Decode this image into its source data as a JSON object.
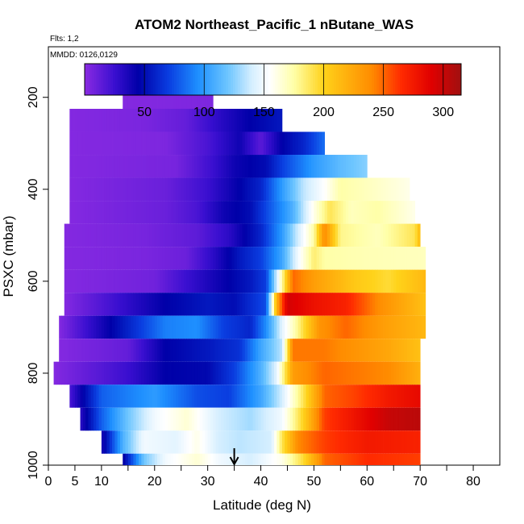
{
  "chart_data": {
    "type": "heatmap",
    "title": "ATOM2 Northeast_Pacific_1 nButane_WAS",
    "annotations": {
      "flights": "Flts: 1,2",
      "dates": "MMDD: 0126,0129"
    },
    "xlabel": "Latitude (deg N)",
    "ylabel": "PSXC (mbar)",
    "xlim": [
      0,
      85
    ],
    "ylim": [
      1000,
      90
    ],
    "y_reversed": true,
    "x_ticks": [
      0,
      5,
      10,
      20,
      30,
      40,
      50,
      60,
      70,
      80
    ],
    "y_ticks": [
      200,
      400,
      600,
      800,
      1000
    ],
    "grid": false,
    "colorbar": {
      "range": [
        0,
        315
      ],
      "tick_values": [
        50,
        100,
        150,
        200,
        250,
        300
      ],
      "stops": [
        {
          "v": 0,
          "color": "#8a2be2"
        },
        {
          "v": 25,
          "color": "#3a0fd0"
        },
        {
          "v": 45,
          "color": "#0000a8"
        },
        {
          "v": 70,
          "color": "#0a3de0"
        },
        {
          "v": 95,
          "color": "#1e90ff"
        },
        {
          "v": 120,
          "color": "#6ec6ff"
        },
        {
          "v": 140,
          "color": "#d6efff"
        },
        {
          "v": 155,
          "color": "#ffffff"
        },
        {
          "v": 175,
          "color": "#ffffa8"
        },
        {
          "v": 200,
          "color": "#ffd21a"
        },
        {
          "v": 240,
          "color": "#ff8c00"
        },
        {
          "v": 265,
          "color": "#ff2a00"
        },
        {
          "v": 290,
          "color": "#e00000"
        },
        {
          "v": 315,
          "color": "#a01010"
        }
      ]
    },
    "marker_latitude": 35,
    "rows": [
      {
        "p": 200,
        "lat_min": 14,
        "lat_max": 31,
        "seg": [
          [
            14,
            2
          ],
          [
            31,
            4
          ]
        ]
      },
      {
        "p": 250,
        "lat_min": 4,
        "lat_max": 44,
        "seg": [
          [
            4,
            2
          ],
          [
            18,
            5
          ],
          [
            26,
            12
          ],
          [
            32,
            30
          ],
          [
            38,
            45
          ],
          [
            44,
            55
          ]
        ]
      },
      {
        "p": 300,
        "lat_min": 4,
        "lat_max": 52,
        "seg": [
          [
            4,
            2
          ],
          [
            22,
            4
          ],
          [
            30,
            20
          ],
          [
            36,
            40
          ],
          [
            40,
            15
          ],
          [
            44,
            45
          ],
          [
            48,
            60
          ],
          [
            52,
            85
          ]
        ]
      },
      {
        "p": 350,
        "lat_min": 4,
        "lat_max": 60,
        "seg": [
          [
            4,
            2
          ],
          [
            24,
            6
          ],
          [
            31,
            25
          ],
          [
            35,
            40
          ],
          [
            41,
            50
          ],
          [
            44,
            70
          ],
          [
            50,
            100
          ],
          [
            55,
            115
          ],
          [
            60,
            125
          ]
        ]
      },
      {
        "p": 400,
        "lat_min": 4,
        "lat_max": 68,
        "seg": [
          [
            4,
            2
          ],
          [
            22,
            10
          ],
          [
            30,
            25
          ],
          [
            36,
            45
          ],
          [
            40,
            60
          ],
          [
            44,
            100
          ],
          [
            48,
            135
          ],
          [
            52,
            155
          ],
          [
            55,
            175
          ],
          [
            60,
            170
          ],
          [
            68,
            160
          ]
        ]
      },
      {
        "p": 450,
        "lat_min": 4,
        "lat_max": 69,
        "seg": [
          [
            4,
            2
          ],
          [
            22,
            10
          ],
          [
            28,
            20
          ],
          [
            33,
            40
          ],
          [
            38,
            50
          ],
          [
            42,
            80
          ],
          [
            46,
            110
          ],
          [
            50,
            160
          ],
          [
            53,
            190
          ],
          [
            57,
            170
          ],
          [
            62,
            175
          ],
          [
            69,
            160
          ]
        ]
      },
      {
        "p": 500,
        "lat_min": 3,
        "lat_max": 70,
        "seg": [
          [
            3,
            2
          ],
          [
            18,
            6
          ],
          [
            28,
            14
          ],
          [
            34,
            30
          ],
          [
            40,
            60
          ],
          [
            44,
            100
          ],
          [
            47,
            140
          ],
          [
            50,
            175
          ],
          [
            52,
            240
          ],
          [
            55,
            180
          ],
          [
            62,
            170
          ],
          [
            69,
            190
          ],
          [
            70,
            215
          ]
        ]
      },
      {
        "p": 550,
        "lat_min": 3,
        "lat_max": 71,
        "seg": [
          [
            3,
            2
          ],
          [
            18,
            5
          ],
          [
            26,
            10
          ],
          [
            31,
            30
          ],
          [
            36,
            55
          ],
          [
            40,
            70
          ],
          [
            44,
            105
          ],
          [
            47,
            150
          ],
          [
            50,
            185
          ],
          [
            52,
            175
          ],
          [
            60,
            172
          ],
          [
            71,
            170
          ]
        ]
      },
      {
        "p": 600,
        "lat_min": 3,
        "lat_max": 71,
        "seg": [
          [
            3,
            2
          ],
          [
            20,
            8
          ],
          [
            26,
            25
          ],
          [
            32,
            40
          ],
          [
            38,
            55
          ],
          [
            41,
            70
          ],
          [
            44,
            175
          ],
          [
            46,
            250
          ],
          [
            50,
            230
          ],
          [
            58,
            205
          ],
          [
            64,
            195
          ],
          [
            71,
            215
          ]
        ]
      },
      {
        "p": 650,
        "lat_min": 3,
        "lat_max": 71,
        "seg": [
          [
            3,
            2
          ],
          [
            22,
            45
          ],
          [
            30,
            55
          ],
          [
            35,
            50
          ],
          [
            41,
            75
          ],
          [
            43,
            220
          ],
          [
            45,
            295
          ],
          [
            50,
            280
          ],
          [
            56,
            270
          ],
          [
            62,
            240
          ],
          [
            71,
            210
          ]
        ]
      },
      {
        "p": 700,
        "lat_min": 2,
        "lat_max": 71,
        "seg": [
          [
            2,
            2
          ],
          [
            22,
            90
          ],
          [
            28,
            95
          ],
          [
            33,
            70
          ],
          [
            38,
            60
          ],
          [
            41,
            95
          ],
          [
            44,
            145
          ],
          [
            47,
            180
          ],
          [
            51,
            235
          ],
          [
            56,
            250
          ],
          [
            63,
            230
          ],
          [
            71,
            215
          ]
        ]
      },
      {
        "p": 750,
        "lat_min": 2,
        "lat_max": 70,
        "seg": [
          [
            2,
            2
          ],
          [
            15,
            12
          ],
          [
            22,
            45
          ],
          [
            30,
            55
          ],
          [
            36,
            65
          ],
          [
            40,
            105
          ],
          [
            44,
            135
          ],
          [
            46,
            245
          ],
          [
            52,
            245
          ],
          [
            58,
            235
          ],
          [
            64,
            225
          ],
          [
            70,
            210
          ]
        ]
      },
      {
        "p": 800,
        "lat_min": 1,
        "lat_max": 70,
        "seg": [
          [
            1,
            2
          ],
          [
            15,
            25
          ],
          [
            22,
            45
          ],
          [
            30,
            48
          ],
          [
            35,
            70
          ],
          [
            40,
            110
          ],
          [
            43,
            145
          ],
          [
            46,
            230
          ],
          [
            52,
            250
          ],
          [
            58,
            245
          ],
          [
            64,
            240
          ],
          [
            70,
            220
          ]
        ]
      },
      {
        "p": 850,
        "lat_min": 4,
        "lat_max": 70,
        "seg": [
          [
            4,
            20
          ],
          [
            10,
            80
          ],
          [
            20,
            100
          ],
          [
            28,
            75
          ],
          [
            34,
            70
          ],
          [
            40,
            105
          ],
          [
            44,
            140
          ],
          [
            48,
            190
          ],
          [
            52,
            250
          ],
          [
            58,
            260
          ],
          [
            64,
            275
          ],
          [
            70,
            285
          ]
        ]
      },
      {
        "p": 900,
        "lat_min": 6,
        "lat_max": 70,
        "seg": [
          [
            6,
            30
          ],
          [
            10,
            80
          ],
          [
            15,
            120
          ],
          [
            20,
            150
          ],
          [
            26,
            165
          ],
          [
            32,
            140
          ],
          [
            38,
            130
          ],
          [
            44,
            150
          ],
          [
            48,
            200
          ],
          [
            52,
            260
          ],
          [
            58,
            280
          ],
          [
            64,
            300
          ],
          [
            70,
            305
          ]
        ]
      },
      {
        "p": 950,
        "lat_min": 10,
        "lat_max": 70,
        "seg": [
          [
            10,
            35
          ],
          [
            14,
            110
          ],
          [
            18,
            150
          ],
          [
            24,
            145
          ],
          [
            28,
            160
          ],
          [
            32,
            140
          ],
          [
            36,
            135
          ],
          [
            42,
            140
          ],
          [
            44,
            190
          ],
          [
            47,
            240
          ],
          [
            52,
            260
          ],
          [
            60,
            275
          ],
          [
            70,
            270
          ]
        ]
      },
      {
        "p": 1000,
        "lat_min": 14,
        "lat_max": 70,
        "seg": [
          [
            14,
            40
          ],
          [
            18,
            120
          ],
          [
            22,
            150
          ],
          [
            28,
            165
          ],
          [
            32,
            150
          ],
          [
            38,
            140
          ],
          [
            44,
            160
          ],
          [
            48,
            195
          ],
          [
            52,
            250
          ],
          [
            60,
            265
          ],
          [
            70,
            260
          ]
        ]
      }
    ]
  }
}
